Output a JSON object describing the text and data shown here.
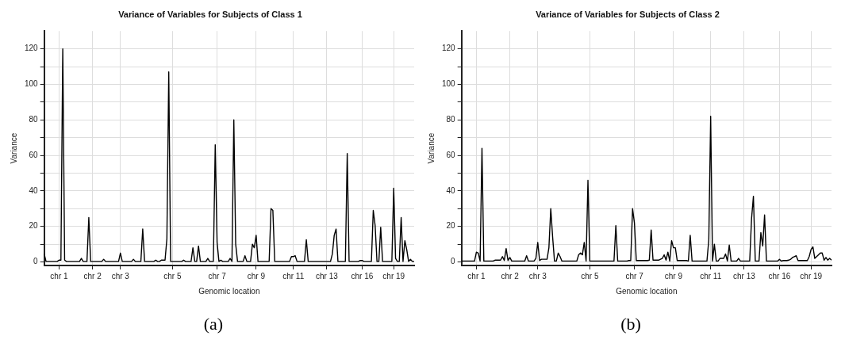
{
  "chart_data": [
    {
      "type": "line",
      "title": "Variance of Variables for Subjects of Class 1",
      "xlabel": "Genomic location",
      "ylabel": "Variance",
      "annotations": [
        "(a)"
      ],
      "color": "#000000",
      "grid": true,
      "ylim": [
        -2,
        130
      ],
      "yticks": [
        0,
        {
          "value": 10,
          "label": null
        },
        20,
        {
          "value": 30,
          "label": null
        },
        40,
        {
          "value": 50,
          "label": null
        },
        60,
        {
          "value": 70,
          "label": null
        },
        80,
        {
          "value": 90,
          "label": null
        },
        100,
        {
          "value": 110,
          "label": null
        },
        120
      ],
      "categories": [
        null,
        null,
        null,
        null,
        null,
        null,
        null,
        null,
        "chr 1",
        null,
        null,
        null,
        null,
        null,
        null,
        null,
        null,
        null,
        null,
        null,
        null,
        null,
        null,
        null,
        null,
        null,
        "chr 2",
        null,
        null,
        null,
        null,
        null,
        null,
        null,
        null,
        null,
        null,
        null,
        null,
        null,
        null,
        "chr 3",
        null,
        null,
        null,
        null,
        null,
        null,
        null,
        null,
        null,
        null,
        null,
        null,
        null,
        null,
        null,
        null,
        null,
        null,
        null,
        null,
        null,
        null,
        null,
        null,
        null,
        null,
        null,
        "chr 5",
        null,
        null,
        null,
        null,
        null,
        null,
        null,
        null,
        null,
        null,
        null,
        null,
        null,
        null,
        null,
        null,
        null,
        null,
        null,
        null,
        null,
        null,
        null,
        "chr 7",
        null,
        null,
        null,
        null,
        null,
        null,
        null,
        null,
        null,
        null,
        null,
        null,
        null,
        null,
        null,
        null,
        null,
        null,
        null,
        null,
        "chr 9",
        null,
        null,
        null,
        null,
        null,
        null,
        null,
        null,
        null,
        null,
        null,
        null,
        null,
        null,
        null,
        null,
        null,
        null,
        null,
        "chr 11",
        null,
        null,
        null,
        null,
        null,
        null,
        null,
        null,
        null,
        null,
        null,
        null,
        null,
        null,
        null,
        null,
        null,
        "chr 13",
        null,
        null,
        null,
        null,
        null,
        null,
        null,
        null,
        null,
        null,
        null,
        null,
        null,
        null,
        null,
        null,
        null,
        null,
        "chr 16",
        null,
        null,
        null,
        null,
        null,
        null,
        null,
        null,
        null,
        null,
        null,
        null,
        null,
        null,
        null,
        null,
        "chr 19",
        null,
        null,
        null,
        null,
        null,
        null,
        null,
        null,
        null,
        null,
        null
      ],
      "values": [
        4.5,
        0.3,
        0.3,
        0.3,
        0.3,
        0.3,
        0.3,
        0.3,
        1,
        1,
        120,
        1,
        0.3,
        0.3,
        0.3,
        0.3,
        0.3,
        0.3,
        0.3,
        0.3,
        2,
        0.3,
        0.3,
        0.3,
        25,
        0.3,
        0.3,
        0.3,
        0.3,
        0.3,
        0.3,
        0.3,
        1.5,
        0.3,
        0.3,
        0.3,
        0.3,
        0.3,
        0.3,
        0.3,
        0.3,
        5,
        0.3,
        0.3,
        0.3,
        0.3,
        0.3,
        0.3,
        1.5,
        0.3,
        0.3,
        0.3,
        0.3,
        18.5,
        0.3,
        0.3,
        0.3,
        0.3,
        0.3,
        0.3,
        1,
        0.3,
        0.3,
        1,
        1,
        1,
        13,
        107,
        0.3,
        0.3,
        0.3,
        0.3,
        0.3,
        0.3,
        0.3,
        1,
        0.3,
        0.3,
        0.3,
        0.3,
        8,
        0.3,
        0.3,
        9,
        0.3,
        0.3,
        0.3,
        0.3,
        2,
        0.3,
        0.3,
        0.3,
        66,
        11,
        0.3,
        1,
        0.3,
        0.3,
        0.3,
        0.3,
        2,
        0.3,
        80,
        10,
        0.3,
        0.3,
        0.3,
        0.3,
        3.5,
        0.3,
        0.3,
        0.3,
        10,
        8,
        15,
        0.3,
        0.3,
        0.3,
        0.3,
        0.3,
        0.3,
        0.3,
        30,
        29,
        0.3,
        0.3,
        0.3,
        0.3,
        0.3,
        0.3,
        0.3,
        0.3,
        0.3,
        3,
        3,
        3.5,
        0.3,
        0.3,
        0.3,
        0.3,
        0.3,
        12.5,
        0.3,
        0.3,
        0.3,
        0.3,
        0.3,
        0.3,
        0.3,
        0.3,
        0.3,
        0.3,
        0.3,
        0.3,
        0.3,
        4.5,
        15,
        18.5,
        0.3,
        0.3,
        0.3,
        0.3,
        0.3,
        61,
        0.3,
        0.3,
        0.3,
        0.3,
        0.3,
        0.3,
        0.8,
        0.8,
        0.3,
        0.3,
        0.3,
        0.3,
        0.3,
        29,
        20.5,
        0.3,
        0.3,
        19.5,
        0.3,
        0.3,
        0.3,
        0.3,
        0.3,
        0.3,
        41.5,
        2,
        0.3,
        0.3,
        25,
        0.3,
        12,
        7,
        0.3,
        1.5,
        0.3,
        0.3
      ]
    },
    {
      "type": "line",
      "title": "Variance of Variables for Subjects of Class 2",
      "xlabel": "Genomic location",
      "ylabel": "Variance",
      "annotations": [
        "(b)"
      ],
      "color": "#000000",
      "grid": true,
      "ylim": [
        -2,
        130
      ],
      "yticks": [
        0,
        {
          "value": 10,
          "label": null
        },
        20,
        {
          "value": 30,
          "label": null
        },
        40,
        {
          "value": 50,
          "label": null
        },
        60,
        {
          "value": 70,
          "label": null
        },
        80,
        {
          "value": 90,
          "label": null
        },
        100,
        {
          "value": 110,
          "label": null
        },
        120
      ],
      "categories": [
        null,
        null,
        null,
        null,
        null,
        null,
        null,
        null,
        "chr 1",
        null,
        null,
        null,
        null,
        null,
        null,
        null,
        null,
        null,
        null,
        null,
        null,
        null,
        null,
        null,
        null,
        null,
        "chr 2",
        null,
        null,
        null,
        null,
        null,
        null,
        null,
        null,
        null,
        null,
        null,
        null,
        null,
        null,
        "chr 3",
        null,
        null,
        null,
        null,
        null,
        null,
        null,
        null,
        null,
        null,
        null,
        null,
        null,
        null,
        null,
        null,
        null,
        null,
        null,
        null,
        null,
        null,
        null,
        null,
        null,
        null,
        null,
        "chr 5",
        null,
        null,
        null,
        null,
        null,
        null,
        null,
        null,
        null,
        null,
        null,
        null,
        null,
        null,
        null,
        null,
        null,
        null,
        null,
        null,
        null,
        null,
        null,
        "chr 7",
        null,
        null,
        null,
        null,
        null,
        null,
        null,
        null,
        null,
        null,
        null,
        null,
        null,
        null,
        null,
        null,
        null,
        null,
        null,
        null,
        "chr 9",
        null,
        null,
        null,
        null,
        null,
        null,
        null,
        null,
        null,
        null,
        null,
        null,
        null,
        null,
        null,
        null,
        null,
        null,
        null,
        "chr 11",
        null,
        null,
        null,
        null,
        null,
        null,
        null,
        null,
        null,
        null,
        null,
        null,
        null,
        null,
        null,
        null,
        null,
        "chr 13",
        null,
        null,
        null,
        null,
        null,
        null,
        null,
        null,
        null,
        null,
        null,
        null,
        null,
        null,
        null,
        null,
        null,
        null,
        "chr 16",
        null,
        null,
        null,
        null,
        null,
        null,
        null,
        null,
        null,
        null,
        null,
        null,
        null,
        null,
        null,
        null,
        "chr 19",
        null,
        null,
        null,
        null,
        null,
        null,
        null,
        null,
        null,
        null,
        null
      ],
      "values": [
        0.5,
        0.5,
        0.5,
        0.5,
        0.5,
        0.5,
        0.5,
        0.5,
        5.5,
        5,
        0.5,
        64,
        0.5,
        0.5,
        0.5,
        0.5,
        0.5,
        0.5,
        1,
        1,
        1,
        1,
        3,
        0.8,
        7.5,
        0.8,
        2.5,
        0.5,
        0.5,
        0.5,
        0.5,
        0.5,
        0.5,
        0.5,
        0.5,
        3.5,
        0.5,
        0.5,
        0.5,
        0.5,
        2,
        11,
        0.8,
        1.5,
        1.5,
        1.5,
        1.5,
        8,
        30,
        14,
        0.5,
        0.5,
        5,
        3,
        0.5,
        0.5,
        0.5,
        0.5,
        0.5,
        0.5,
        0.5,
        0.5,
        0.5,
        4,
        5,
        4,
        11,
        0.5,
        46,
        0.5,
        0.5,
        0.5,
        0.5,
        0.5,
        0.5,
        0.5,
        0.5,
        0.5,
        0.5,
        0.5,
        0.5,
        0.5,
        0.5,
        20.5,
        0.5,
        0.5,
        0.5,
        0.5,
        0.5,
        0.5,
        0.8,
        0.8,
        30,
        22,
        0.8,
        0.8,
        0.8,
        0.8,
        0.8,
        0.8,
        0.8,
        1,
        18,
        1,
        1,
        1,
        1,
        1.5,
        2,
        4,
        1,
        5.5,
        0.5,
        12,
        8,
        8,
        0.8,
        0.8,
        0.8,
        0.8,
        0.8,
        0.8,
        0.5,
        15,
        0.5,
        0.5,
        0.5,
        0.5,
        0.5,
        0.5,
        0.5,
        0.5,
        0.5,
        12.5,
        82,
        0.5,
        10,
        0.5,
        0.5,
        2,
        2,
        2,
        4.5,
        0.5,
        9.5,
        0.5,
        0.5,
        0.5,
        0.5,
        2,
        0.5,
        0.5,
        0.5,
        0.5,
        0.5,
        0.5,
        24.5,
        37,
        0.5,
        0.5,
        0.5,
        16.5,
        9,
        26.5,
        0.5,
        0.5,
        0.5,
        0.5,
        0.5,
        0.5,
        0.5,
        1.5,
        0.5,
        0.8,
        0.8,
        0.8,
        1,
        1.5,
        2.5,
        3,
        3.5,
        0.8,
        0.8,
        0.8,
        0.8,
        0.8,
        0.8,
        3,
        7,
        8.5,
        2,
        3,
        4,
        5,
        5,
        1,
        2.5,
        1,
        2,
        1
      ]
    }
  ]
}
